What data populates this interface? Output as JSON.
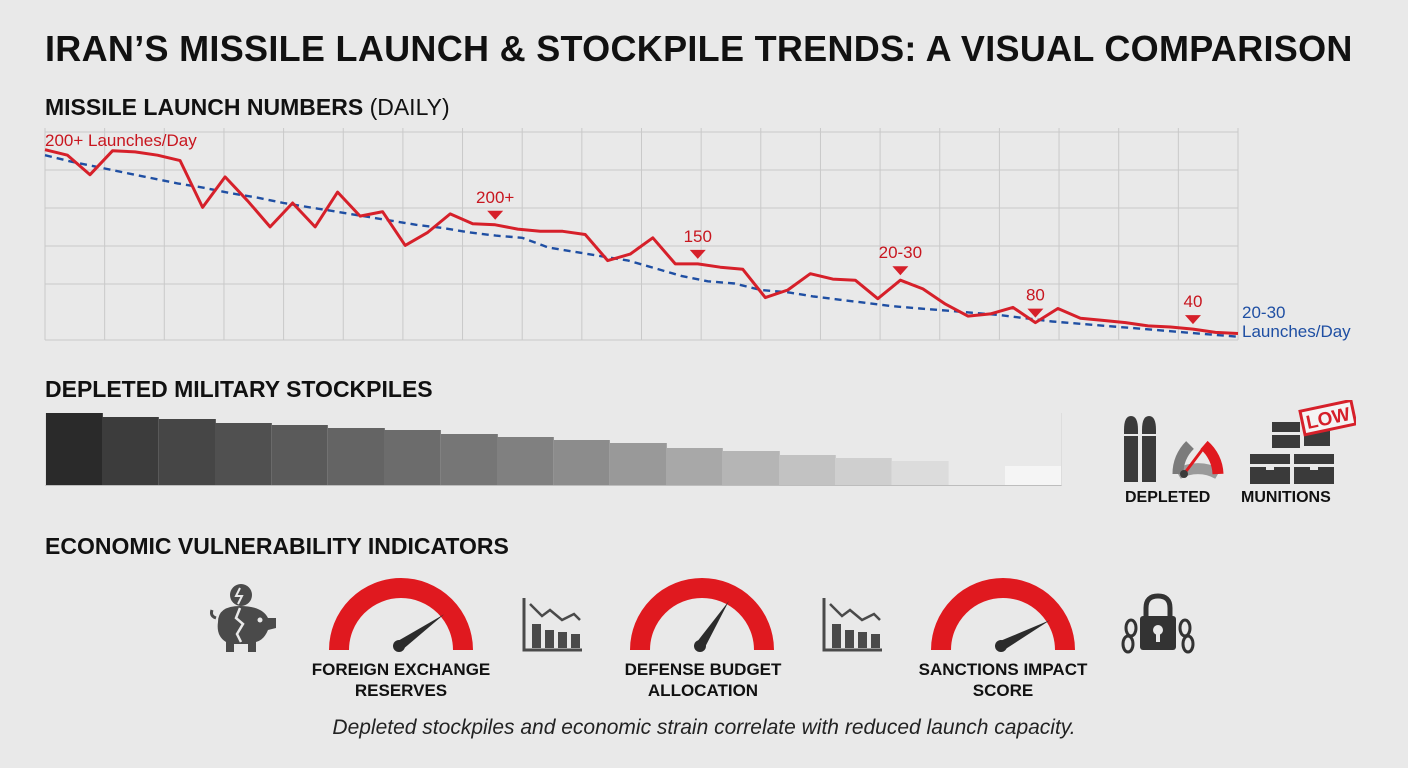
{
  "title": "IRAN’S MISSILE LAUNCH & STOCKPILE TRENDS: A VISUAL COMPARISON",
  "sections": {
    "launch_title": "MISSILE LAUNCH NUMBERS",
    "launch_suffix": "(DAILY)",
    "stockpile_title": "DEPLETED MILITARY STOCKPILES",
    "economic_title": "ECONOMIC VULNERABILITY INDICATORS"
  },
  "colors": {
    "launch_line": "#d6202a",
    "trend_line": "#1f4fa3",
    "gauge_red": "#e0191f",
    "dark_icon": "#3a3a3a"
  },
  "chart_data": {
    "type": "line",
    "series": [
      {
        "values": [
          205,
          200,
          182,
          204,
          203,
          200,
          195,
          152,
          180,
          158,
          134,
          156,
          134,
          166,
          144,
          148,
          117,
          129,
          146,
          137,
          136,
          132,
          130,
          130,
          127,
          103,
          109,
          124,
          100,
          100,
          97,
          95,
          69,
          76,
          91,
          86,
          85,
          68,
          85,
          77,
          63,
          52,
          54,
          60,
          46,
          59,
          50,
          48,
          46,
          43,
          42,
          40,
          37,
          36
        ]
      },
      {
        "style": "dashed",
        "values": [
          200,
          194,
          189,
          184,
          179,
          174,
          170,
          165,
          161,
          156,
          152,
          148,
          144,
          140,
          136,
          133,
          129,
          126,
          124,
          115,
          111,
          107,
          103,
          96,
          89,
          84,
          82,
          76,
          74,
          70,
          67,
          64,
          61,
          59,
          57,
          55,
          53,
          50,
          47,
          45,
          43,
          41,
          39,
          37,
          35,
          33
        ]
      }
    ],
    "annotations": [
      {
        "text": "200+ Launches/Day",
        "series": 0
      },
      {
        "text": "200+",
        "series": 0
      },
      {
        "text": "150",
        "series": 0
      },
      {
        "text": "20-30",
        "series": 0
      },
      {
        "text": "80",
        "series": 0
      },
      {
        "text": "40",
        "series": 0
      },
      {
        "text": "20-30",
        "series": 1
      },
      {
        "text": "Launches/Day",
        "series": 1
      }
    ],
    "grid": true
  },
  "stockpile": {
    "levels": [
      1.0,
      0.94,
      0.91,
      0.86,
      0.83,
      0.79,
      0.76,
      0.71,
      0.67,
      0.62,
      0.58,
      0.52,
      0.47,
      0.42,
      0.38,
      0.33,
      0.0,
      0.26
    ],
    "shades": [
      "#2a2a2a",
      "#3c3c3c",
      "#464646",
      "#505050",
      "#5a5a5a",
      "#646464",
      "#6c6c6c",
      "#767676",
      "#808080",
      "#8c8c8c",
      "#999999",
      "#a8a8a8",
      "#b5b5b5",
      "#c2c2c2",
      "#cfcfcf",
      "#dcdcdc",
      "#e9e9e9",
      "#f5f5f5"
    ],
    "icons": {
      "depleted_label": "DEPLETED",
      "munitions_label": "MUNITIONS",
      "low_badge": "LOW"
    }
  },
  "economic": {
    "gauges": [
      {
        "label_line1": "FOREIGN EXCHANGE",
        "label_line2": "RESERVES",
        "level": 0.78
      },
      {
        "label_line1": "DEFENSE BUDGET",
        "label_line2": "ALLOCATION",
        "level": 0.66
      },
      {
        "label_line1": "SANCTIONS IMPACT",
        "label_line2": "SCORE",
        "level": 0.82
      }
    ]
  },
  "caption": "Depleted stockpiles and economic strain correlate with reduced launch capacity."
}
